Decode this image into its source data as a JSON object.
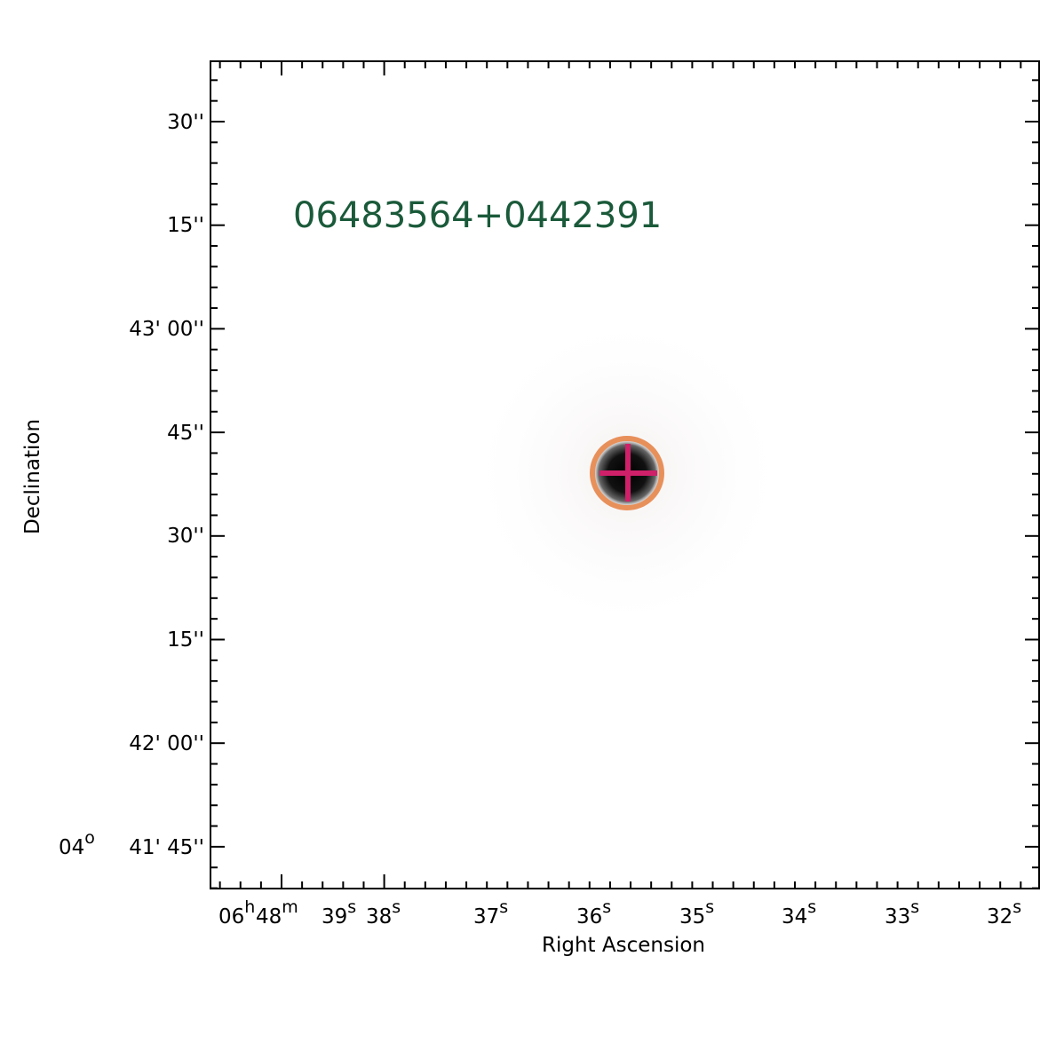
{
  "source_label": "06483564+0442391",
  "x_axis": {
    "label": "Right Ascension",
    "prefix": [
      {
        "value": "06",
        "unit": "h"
      },
      {
        "value": "48",
        "unit": "m"
      }
    ],
    "ticks": [
      {
        "value": "39",
        "unit": "s"
      },
      {
        "value": "38",
        "unit": "s"
      },
      {
        "value": "37",
        "unit": "s"
      },
      {
        "value": "36",
        "unit": "s"
      },
      {
        "value": "35",
        "unit": "s"
      },
      {
        "value": "34",
        "unit": "s"
      },
      {
        "value": "33",
        "unit": "s"
      },
      {
        "value": "32",
        "unit": "s"
      }
    ]
  },
  "y_axis": {
    "label": "Declination",
    "ticks": [
      "30''",
      "15''",
      "43' 00''",
      "45''",
      "30''",
      "15''",
      "42' 00''",
      "41' 45''"
    ],
    "last_prefix": {
      "value": "04",
      "unit": "o"
    }
  }
}
